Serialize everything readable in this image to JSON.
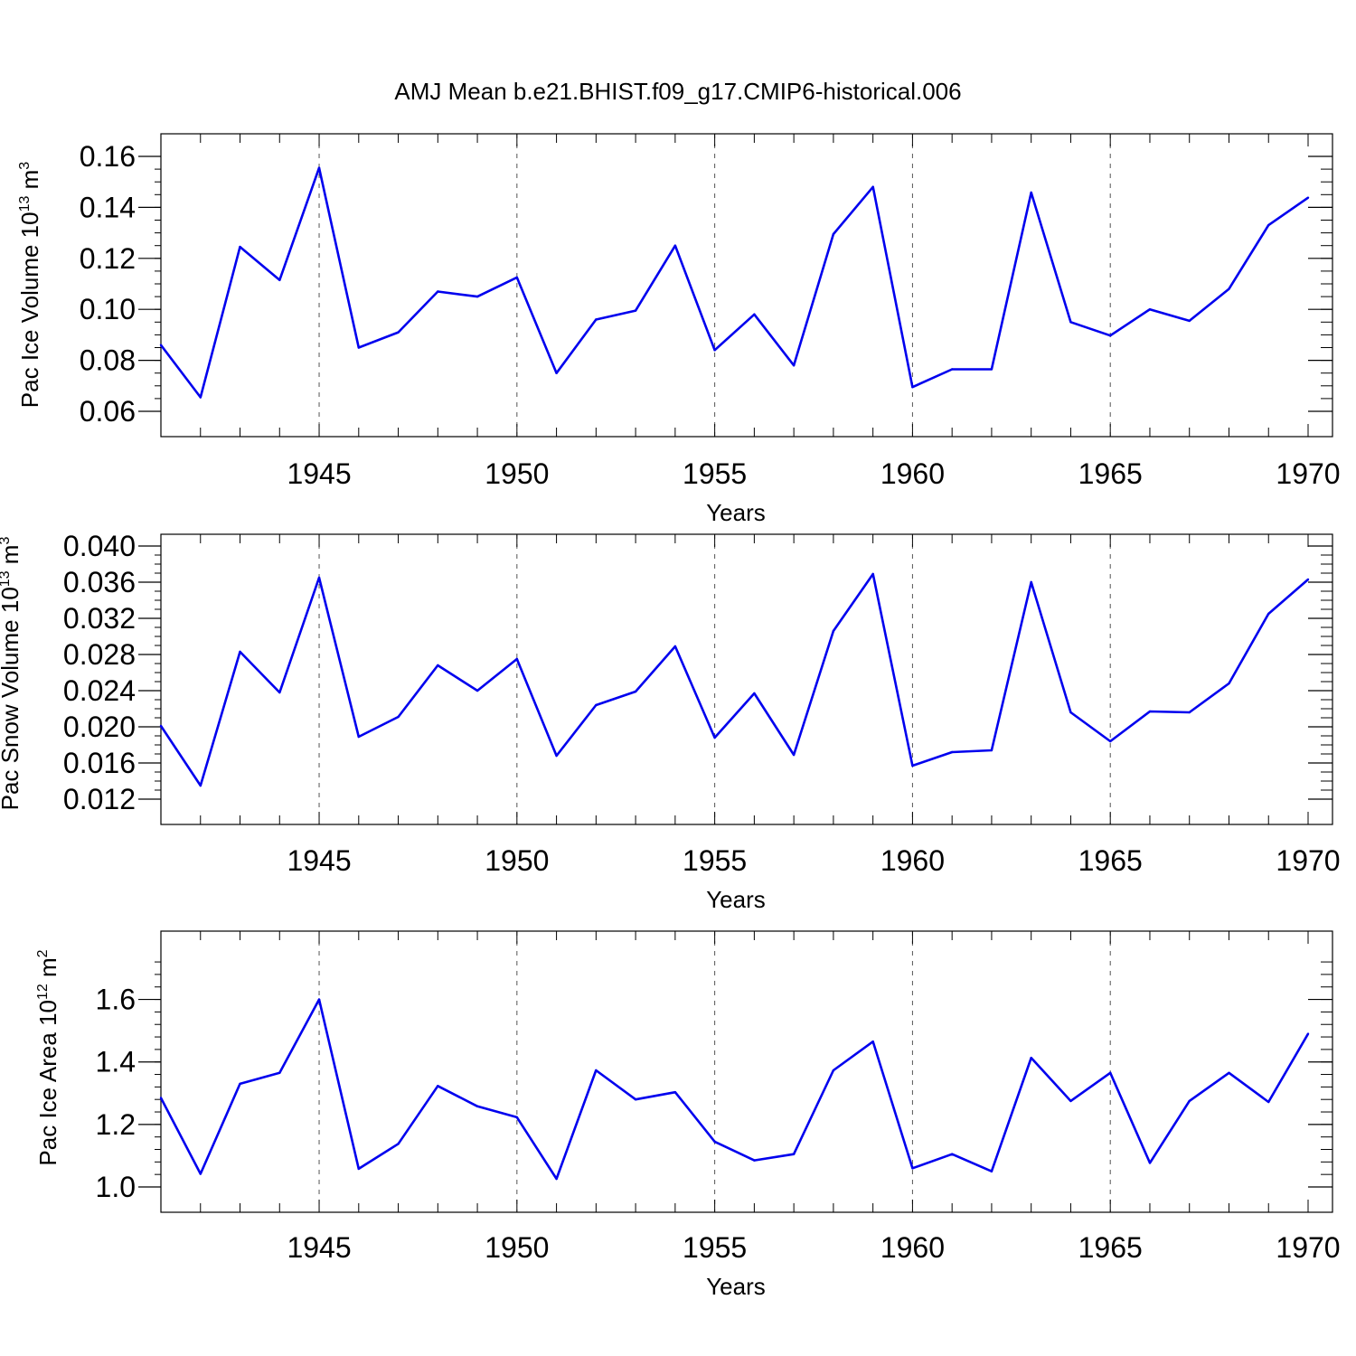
{
  "title": "AMJ Mean b.e21.BHIST.f09_g17.CMIP6-historical.006",
  "colors": {
    "line": "#0000ee",
    "axis": "#000000",
    "grid": "#555555"
  },
  "chart_data": [
    {
      "type": "line",
      "ylabel": "Pac Ice Volume 10",
      "ylabel_exp": "13",
      "ylabel_unit": " m",
      "ylabel_unit_exp": "3",
      "xlabel": "Years",
      "xlim": [
        1941,
        1970
      ],
      "ylim": [
        0.06,
        0.16
      ],
      "yticks": [
        0.06,
        0.08,
        0.1,
        0.12,
        0.14,
        0.16
      ],
      "ytick_labels": [
        "0.06",
        "0.08",
        "0.10",
        "0.12",
        "0.14",
        "0.16"
      ],
      "yminor_step": 0.005,
      "xticks": [
        1945,
        1950,
        1955,
        1960,
        1965,
        1970
      ],
      "xtick_labels": [
        "1945",
        "1950",
        "1955",
        "1960",
        "1965",
        "1970"
      ],
      "grid": "vertical dashed at labeled years",
      "x": [
        1941,
        1942,
        1943,
        1944,
        1945,
        1946,
        1947,
        1948,
        1949,
        1950,
        1951,
        1952,
        1953,
        1954,
        1955,
        1956,
        1957,
        1958,
        1959,
        1960,
        1961,
        1962,
        1963,
        1964,
        1965,
        1966,
        1967,
        1968,
        1969,
        1970
      ],
      "y": [
        0.086,
        0.0655,
        0.1245,
        0.1115,
        0.1555,
        0.085,
        0.091,
        0.107,
        0.105,
        0.1125,
        0.075,
        0.096,
        0.0995,
        0.125,
        0.084,
        0.098,
        0.078,
        0.1295,
        0.148,
        0.0695,
        0.0765,
        0.0765,
        0.1458,
        0.095,
        0.0897,
        0.1,
        0.0955,
        0.108,
        0.133,
        0.1438
      ]
    },
    {
      "type": "line",
      "ylabel": "Pac Snow Volume 10",
      "ylabel_exp": "13",
      "ylabel_unit": " m",
      "ylabel_unit_exp": "3",
      "xlabel": "Years",
      "xlim": [
        1941,
        1970
      ],
      "ylim": [
        0.012,
        0.04
      ],
      "yticks": [
        0.012,
        0.016,
        0.02,
        0.024,
        0.028,
        0.032,
        0.036,
        0.04
      ],
      "ytick_labels": [
        "0.012",
        "0.016",
        "0.020",
        "0.024",
        "0.028",
        "0.032",
        "0.036",
        "0.040"
      ],
      "yminor_step": 0.001,
      "xticks": [
        1945,
        1950,
        1955,
        1960,
        1965,
        1970
      ],
      "xtick_labels": [
        "1945",
        "1950",
        "1955",
        "1960",
        "1965",
        "1970"
      ],
      "grid": "vertical dashed at labeled years",
      "x": [
        1941,
        1942,
        1943,
        1944,
        1945,
        1946,
        1947,
        1948,
        1949,
        1950,
        1951,
        1952,
        1953,
        1954,
        1955,
        1956,
        1957,
        1958,
        1959,
        1960,
        1961,
        1962,
        1963,
        1964,
        1965,
        1966,
        1967,
        1968,
        1969,
        1970
      ],
      "y": [
        0.0201,
        0.0135,
        0.0283,
        0.0238,
        0.0365,
        0.0189,
        0.0211,
        0.0268,
        0.024,
        0.0275,
        0.0168,
        0.0224,
        0.0239,
        0.0289,
        0.0188,
        0.0237,
        0.0169,
        0.0306,
        0.0369,
        0.0157,
        0.0172,
        0.0174,
        0.036,
        0.0216,
        0.0184,
        0.0217,
        0.0216,
        0.0248,
        0.0325,
        0.0363
      ]
    },
    {
      "type": "line",
      "ylabel": "Pac Ice Area 10",
      "ylabel_exp": "12",
      "ylabel_unit": " m",
      "ylabel_unit_exp": "2",
      "xlabel": "Years",
      "xlim": [
        1941,
        1970
      ],
      "ylim": [
        1.0,
        1.7
      ],
      "yticks": [
        1.0,
        1.2,
        1.4,
        1.6
      ],
      "ytick_labels": [
        "1.0",
        "1.2",
        "1.4",
        "1.6"
      ],
      "yminor_step": 0.04,
      "xticks": [
        1945,
        1950,
        1955,
        1960,
        1965,
        1970
      ],
      "xtick_labels": [
        "1945",
        "1950",
        "1955",
        "1960",
        "1965",
        "1970"
      ],
      "grid": "vertical dashed at labeled years",
      "x": [
        1941,
        1942,
        1943,
        1944,
        1945,
        1946,
        1947,
        1948,
        1949,
        1950,
        1951,
        1952,
        1953,
        1954,
        1955,
        1956,
        1957,
        1958,
        1959,
        1960,
        1961,
        1962,
        1963,
        1964,
        1965,
        1966,
        1967,
        1968,
        1969,
        1970
      ],
      "y": [
        1.285,
        1.042,
        1.33,
        1.365,
        1.6,
        1.058,
        1.138,
        1.323,
        1.258,
        1.223,
        1.026,
        1.373,
        1.28,
        1.303,
        1.145,
        1.085,
        1.105,
        1.373,
        1.465,
        1.06,
        1.105,
        1.05,
        1.413,
        1.275,
        1.365,
        1.077,
        1.275,
        1.365,
        1.272,
        1.49
      ]
    }
  ]
}
